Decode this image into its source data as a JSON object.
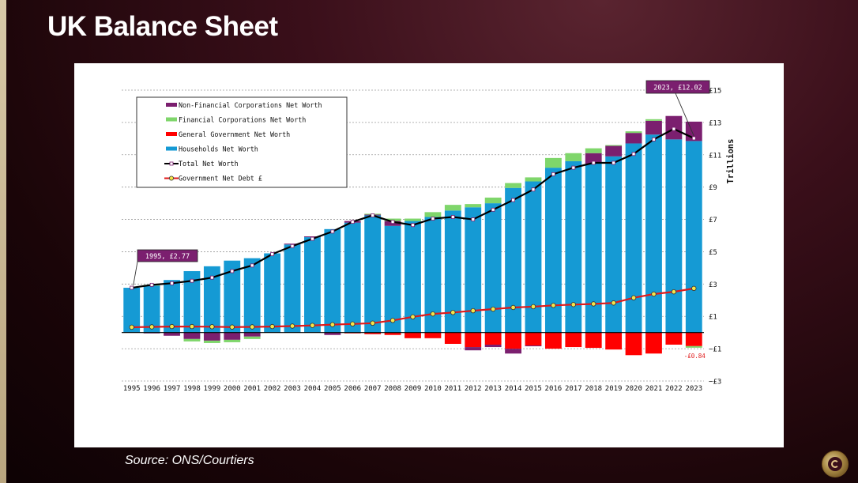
{
  "header": {
    "title": "UK Balance Sheet"
  },
  "footer": {
    "source": "Source: ONS/Courtiers"
  },
  "logo": {
    "icon": "courtiers-logo-icon"
  },
  "chart_data": {
    "type": "bar",
    "stacked": true,
    "categories": [
      "1995",
      "1996",
      "1997",
      "1998",
      "1999",
      "2000",
      "2001",
      "2002",
      "2003",
      "2004",
      "2005",
      "2006",
      "2007",
      "2008",
      "2009",
      "2010",
      "2011",
      "2012",
      "2013",
      "2014",
      "2015",
      "2016",
      "2017",
      "2018",
      "2019",
      "2020",
      "2021",
      "2022",
      "2023"
    ],
    "y_axis": {
      "label": "Trillions",
      "position": "right",
      "ylim": [
        -3,
        15
      ],
      "ticks": [
        15,
        13,
        11,
        9,
        7,
        5,
        3,
        1,
        -1,
        -3
      ],
      "tick_labels": [
        "£15",
        "£13",
        "£11",
        "£9",
        "£7",
        "£5",
        "£3",
        "£1",
        "−£1",
        "−£3"
      ]
    },
    "grid": true,
    "legend": {
      "placement": "top-left"
    },
    "series": [
      {
        "name": "Non-Financial Corporations Net Worth",
        "kind": "bar",
        "color": "#7b1f6f",
        "values": [
          0,
          -0.05,
          -0.2,
          -0.4,
          -0.5,
          -0.45,
          -0.25,
          0,
          0.05,
          0.05,
          -0.15,
          0.1,
          0.05,
          0.3,
          0,
          0,
          0,
          -0.2,
          -0.15,
          -0.3,
          -0.05,
          0,
          0,
          0.65,
          0.65,
          0.65,
          0.85,
          1.45,
          1.2
        ]
      },
      {
        "name": "Financial Corporations Net Worth",
        "kind": "bar",
        "color": "#7fd66b",
        "values": [
          0,
          0.05,
          0,
          -0.15,
          -0.15,
          -0.15,
          -0.15,
          0,
          0,
          0,
          0,
          0,
          0.05,
          0.15,
          0.15,
          0.3,
          0.35,
          0.2,
          0.35,
          0.3,
          0.25,
          0.6,
          0.5,
          0.3,
          0.05,
          0.1,
          0.1,
          0,
          -0.1
        ]
      },
      {
        "name": "General Government Net Worth",
        "kind": "bar",
        "color": "#ff0000",
        "values": [
          0,
          0,
          0,
          0,
          0,
          0,
          0,
          0,
          0,
          0,
          0,
          -0.05,
          -0.1,
          -0.15,
          -0.35,
          -0.35,
          -0.7,
          -0.9,
          -0.75,
          -1.0,
          -0.8,
          -1.0,
          -0.9,
          -0.95,
          -1.05,
          -1.4,
          -1.3,
          -0.75,
          -0.84
        ]
      },
      {
        "name": "Households Net Worth",
        "kind": "bar",
        "color": "#159ad4",
        "values": [
          2.77,
          2.9,
          3.25,
          3.8,
          4.1,
          4.45,
          4.6,
          4.9,
          5.45,
          5.9,
          6.4,
          6.8,
          7.25,
          6.6,
          6.9,
          7.15,
          7.55,
          7.75,
          8.0,
          8.95,
          9.35,
          10.2,
          10.6,
          10.45,
          10.9,
          11.7,
          12.25,
          11.95,
          11.85
        ]
      },
      {
        "name": "Total Net Worth",
        "kind": "line",
        "color": "#000000",
        "values": [
          2.77,
          2.95,
          3.05,
          3.2,
          3.4,
          3.8,
          4.15,
          4.85,
          5.35,
          5.8,
          6.25,
          6.85,
          7.25,
          6.85,
          6.65,
          7.05,
          7.15,
          7.0,
          7.6,
          8.2,
          8.85,
          9.8,
          10.2,
          10.5,
          10.5,
          11.05,
          11.95,
          12.6,
          12.02
        ]
      },
      {
        "name": "Government Net Debt  £",
        "kind": "line",
        "color": "#e01a1a",
        "values": [
          0.33,
          0.35,
          0.37,
          0.37,
          0.36,
          0.34,
          0.35,
          0.37,
          0.4,
          0.44,
          0.49,
          0.53,
          0.58,
          0.75,
          0.97,
          1.15,
          1.24,
          1.35,
          1.45,
          1.55,
          1.6,
          1.68,
          1.73,
          1.77,
          1.83,
          2.15,
          2.38,
          2.52,
          2.73
        ]
      }
    ],
    "annotations": [
      {
        "text": "1995, £2.77",
        "category": "1995",
        "value": 2.77
      },
      {
        "text": "2023, £12.02",
        "category": "2023",
        "value": 12.02
      },
      {
        "text": "-£0.84",
        "category": "2023",
        "value": -0.84
      }
    ]
  }
}
